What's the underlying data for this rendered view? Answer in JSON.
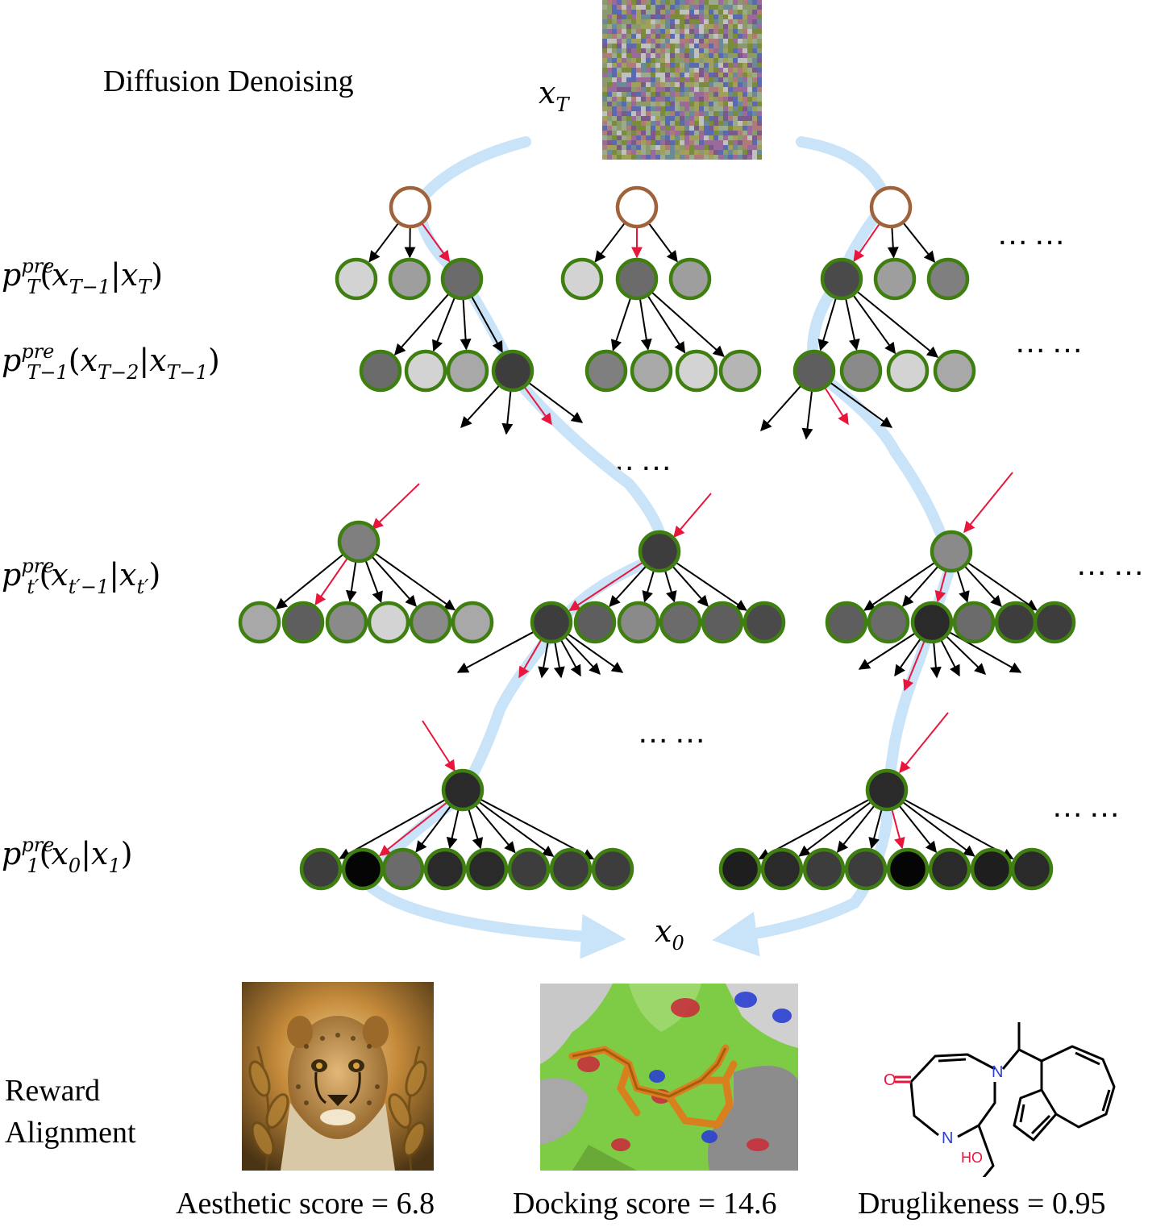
{
  "title": "Diffusion Denoising",
  "x_T_label": "T",
  "x_0_label": "0",
  "levels": [
    {
      "sub": "T",
      "arg": "T−1",
      "cond": "T"
    },
    {
      "sub": "T−1",
      "arg": "T−2",
      "cond": "T−1"
    },
    {
      "sub": "t′",
      "arg": "t′−1",
      "cond": "t′"
    },
    {
      "sub": "1",
      "arg": "0",
      "cond": "1"
    }
  ],
  "pre": "pre",
  "ellipsis": "……",
  "reward_label_line1": "Reward",
  "reward_label_line2": "Alignment",
  "captions": {
    "aesthetic": "Aesthetic score = 6.8",
    "docking": "Docking score = 14.6",
    "druglikeness": "Druglikeness = 0.95"
  },
  "molecule_atoms": {
    "oxygen": "O",
    "nitrogen_top": "N",
    "nitrogen_ring": "N",
    "hydroxyl": "HO"
  },
  "colors": {
    "node_outline": "#3f7f12",
    "root_outline": "#a0623a",
    "red_arrow": "#e8163c",
    "path": "#c9e3f8"
  }
}
